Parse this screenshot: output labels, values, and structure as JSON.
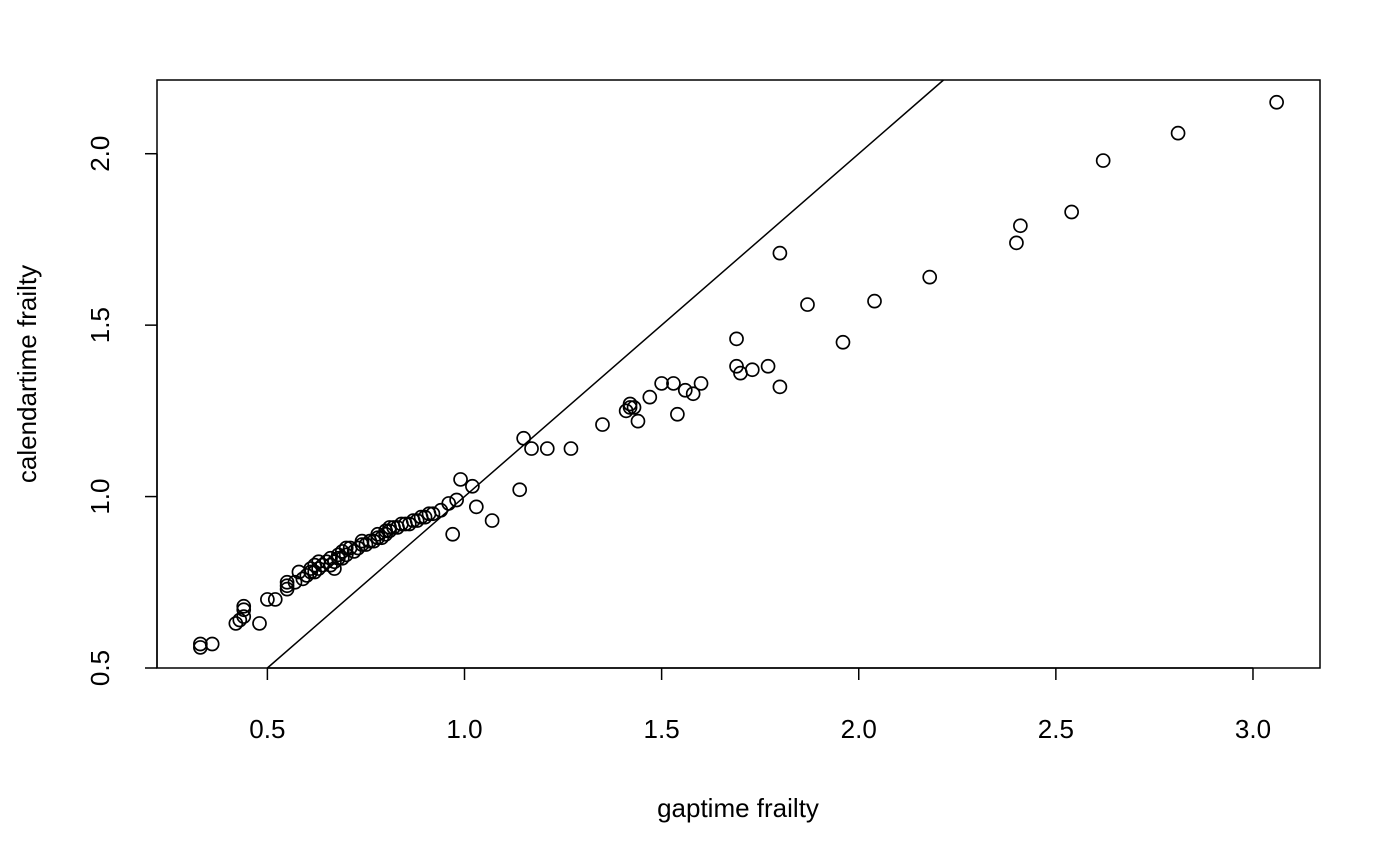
{
  "chart_data": {
    "type": "scatter",
    "title": "",
    "xlabel": "gaptime frailty",
    "ylabel": "calendartime frailty",
    "xlim": [
      0.22,
      3.17
    ],
    "ylim": [
      0.5,
      2.215
    ],
    "xticks": [
      0.5,
      1.0,
      1.5,
      2.0,
      2.5,
      3.0
    ],
    "xtick_labels": [
      "0.5",
      "1.0",
      "1.5",
      "2.0",
      "2.5",
      "3.0"
    ],
    "yticks": [
      0.5,
      1.0,
      1.5,
      2.0
    ],
    "ytick_labels": [
      "0.5",
      "1.0",
      "1.5",
      "2.0"
    ],
    "grid": false,
    "reference_line": {
      "intercept": 0,
      "slope": 1
    },
    "series": [
      {
        "name": "frailty",
        "marker": "open-circle",
        "color": "#000000",
        "points": [
          [
            0.33,
            0.56
          ],
          [
            0.33,
            0.57
          ],
          [
            0.36,
            0.57
          ],
          [
            0.42,
            0.63
          ],
          [
            0.43,
            0.64
          ],
          [
            0.44,
            0.65
          ],
          [
            0.44,
            0.67
          ],
          [
            0.44,
            0.68
          ],
          [
            0.48,
            0.63
          ],
          [
            0.5,
            0.7
          ],
          [
            0.52,
            0.7
          ],
          [
            0.55,
            0.73
          ],
          [
            0.55,
            0.74
          ],
          [
            0.55,
            0.75
          ],
          [
            0.57,
            0.75
          ],
          [
            0.58,
            0.78
          ],
          [
            0.59,
            0.76
          ],
          [
            0.6,
            0.77
          ],
          [
            0.61,
            0.78
          ],
          [
            0.61,
            0.79
          ],
          [
            0.62,
            0.78
          ],
          [
            0.62,
            0.8
          ],
          [
            0.63,
            0.79
          ],
          [
            0.63,
            0.81
          ],
          [
            0.64,
            0.8
          ],
          [
            0.65,
            0.81
          ],
          [
            0.66,
            0.8
          ],
          [
            0.66,
            0.82
          ],
          [
            0.67,
            0.79
          ],
          [
            0.67,
            0.81
          ],
          [
            0.68,
            0.82
          ],
          [
            0.68,
            0.83
          ],
          [
            0.69,
            0.84
          ],
          [
            0.69,
            0.82
          ],
          [
            0.7,
            0.85
          ],
          [
            0.7,
            0.83
          ],
          [
            0.71,
            0.85
          ],
          [
            0.72,
            0.84
          ],
          [
            0.73,
            0.85
          ],
          [
            0.74,
            0.86
          ],
          [
            0.74,
            0.87
          ],
          [
            0.75,
            0.86
          ],
          [
            0.76,
            0.87
          ],
          [
            0.77,
            0.87
          ],
          [
            0.78,
            0.88
          ],
          [
            0.78,
            0.89
          ],
          [
            0.79,
            0.88
          ],
          [
            0.8,
            0.89
          ],
          [
            0.8,
            0.9
          ],
          [
            0.81,
            0.9
          ],
          [
            0.81,
            0.91
          ],
          [
            0.82,
            0.91
          ],
          [
            0.83,
            0.91
          ],
          [
            0.84,
            0.92
          ],
          [
            0.85,
            0.92
          ],
          [
            0.86,
            0.92
          ],
          [
            0.87,
            0.93
          ],
          [
            0.88,
            0.93
          ],
          [
            0.89,
            0.94
          ],
          [
            0.9,
            0.94
          ],
          [
            0.91,
            0.95
          ],
          [
            0.92,
            0.95
          ],
          [
            0.94,
            0.96
          ],
          [
            0.96,
            0.98
          ],
          [
            0.97,
            0.89
          ],
          [
            0.98,
            0.99
          ],
          [
            0.99,
            1.05
          ],
          [
            1.02,
            1.03
          ],
          [
            1.03,
            0.97
          ],
          [
            1.07,
            0.93
          ],
          [
            1.14,
            1.02
          ],
          [
            1.15,
            1.17
          ],
          [
            1.17,
            1.14
          ],
          [
            1.21,
            1.14
          ],
          [
            1.27,
            1.14
          ],
          [
            1.35,
            1.21
          ],
          [
            1.41,
            1.25
          ],
          [
            1.42,
            1.26
          ],
          [
            1.42,
            1.27
          ],
          [
            1.43,
            1.26
          ],
          [
            1.44,
            1.22
          ],
          [
            1.47,
            1.29
          ],
          [
            1.5,
            1.33
          ],
          [
            1.53,
            1.33
          ],
          [
            1.54,
            1.24
          ],
          [
            1.56,
            1.31
          ],
          [
            1.58,
            1.3
          ],
          [
            1.6,
            1.33
          ],
          [
            1.69,
            1.38
          ],
          [
            1.69,
            1.46
          ],
          [
            1.7,
            1.36
          ],
          [
            1.73,
            1.37
          ],
          [
            1.77,
            1.38
          ],
          [
            1.8,
            1.32
          ],
          [
            1.8,
            1.71
          ],
          [
            1.87,
            1.56
          ],
          [
            1.96,
            1.45
          ],
          [
            2.04,
            1.57
          ],
          [
            2.18,
            1.64
          ],
          [
            2.4,
            1.74
          ],
          [
            2.41,
            1.79
          ],
          [
            2.54,
            1.83
          ],
          [
            2.62,
            1.98
          ],
          [
            2.81,
            2.06
          ],
          [
            3.06,
            2.15
          ]
        ]
      }
    ]
  }
}
